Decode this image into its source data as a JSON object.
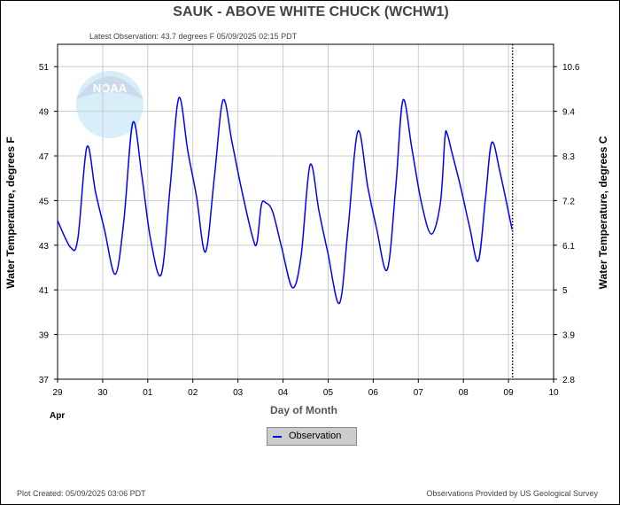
{
  "title": "SAUK - ABOVE WHITE CHUCK  (WCHW1)",
  "latest_observation": "Latest Observation: 43.7 degrees F 05/09/2025 02:15 PDT",
  "plot_created": "Plot Created: 05/09/2025 03:06 PDT",
  "provided_by": "Observations Provided by US Geological Survey",
  "logo_text": "NOAA",
  "legend": {
    "label": "Observation",
    "color": "#0000ff"
  },
  "chart_data": {
    "type": "line",
    "title": "SAUK - ABOVE WHITE CHUCK  (WCHW1)",
    "xlabel": "Day of Month",
    "ylabel": "Water Temperature, degrees F",
    "ylabel_right": "Water Temperature, degrees C",
    "x_unit_note": "days since Apr 29 00:00",
    "xlim": [
      0,
      11
    ],
    "ylim": [
      37,
      52
    ],
    "x_ticks": [
      0,
      1,
      2,
      3,
      4,
      5,
      6,
      7,
      8,
      9,
      10,
      11
    ],
    "x_tick_labels": [
      "29",
      "30",
      "01",
      "02",
      "03",
      "04",
      "05",
      "06",
      "07",
      "08",
      "09",
      "10"
    ],
    "x_month_label": "Apr",
    "y_ticks": [
      37,
      39,
      41,
      43,
      45,
      47,
      49,
      51
    ],
    "y_right_tick_labels": [
      "2.8",
      "3.9",
      "5",
      "6.1",
      "7.2",
      "8.3",
      "9.4",
      "10.6"
    ],
    "grid": true,
    "latest_marker_x": 10.09,
    "legend_position": "bottom-center",
    "series": [
      {
        "name": "Observation",
        "color": "#0000ff",
        "points": [
          [
            0,
            44.1
          ],
          [
            0.29,
            42.9
          ],
          [
            0.45,
            43.3
          ],
          [
            0.65,
            47.4
          ],
          [
            0.84,
            45.4
          ],
          [
            1.04,
            43.7
          ],
          [
            1.28,
            41.7
          ],
          [
            1.47,
            44.1
          ],
          [
            1.67,
            48.5
          ],
          [
            1.87,
            46.1
          ],
          [
            2.06,
            43.3
          ],
          [
            2.3,
            41.7
          ],
          [
            2.5,
            45.7
          ],
          [
            2.69,
            49.6
          ],
          [
            2.89,
            47.2
          ],
          [
            3.08,
            45.2
          ],
          [
            3.28,
            42.7
          ],
          [
            3.48,
            46.1
          ],
          [
            3.67,
            49.5
          ],
          [
            3.87,
            47.6
          ],
          [
            4.07,
            45.6
          ],
          [
            4.32,
            43.4
          ],
          [
            4.42,
            43.1
          ],
          [
            4.52,
            44.8
          ],
          [
            4.62,
            44.9
          ],
          [
            4.77,
            44.5
          ],
          [
            4.97,
            42.9
          ],
          [
            5.21,
            41.1
          ],
          [
            5.4,
            42.5
          ],
          [
            5.6,
            46.6
          ],
          [
            5.8,
            44.5
          ],
          [
            5.99,
            42.7
          ],
          [
            6.25,
            40.4
          ],
          [
            6.44,
            43.7
          ],
          [
            6.66,
            48.1
          ],
          [
            6.88,
            45.6
          ],
          [
            7.07,
            43.8
          ],
          [
            7.31,
            41.9
          ],
          [
            7.5,
            45.6
          ],
          [
            7.66,
            49.5
          ],
          [
            7.86,
            47.3
          ],
          [
            8.07,
            44.9
          ],
          [
            8.29,
            43.5
          ],
          [
            8.49,
            44.9
          ],
          [
            8.59,
            47.8
          ],
          [
            8.64,
            48.0
          ],
          [
            8.74,
            47.2
          ],
          [
            8.94,
            45.6
          ],
          [
            9.14,
            43.8
          ],
          [
            9.33,
            42.3
          ],
          [
            9.49,
            45.1
          ],
          [
            9.63,
            47.6
          ],
          [
            9.82,
            46.2
          ],
          [
            10.08,
            43.7
          ]
        ]
      }
    ]
  }
}
